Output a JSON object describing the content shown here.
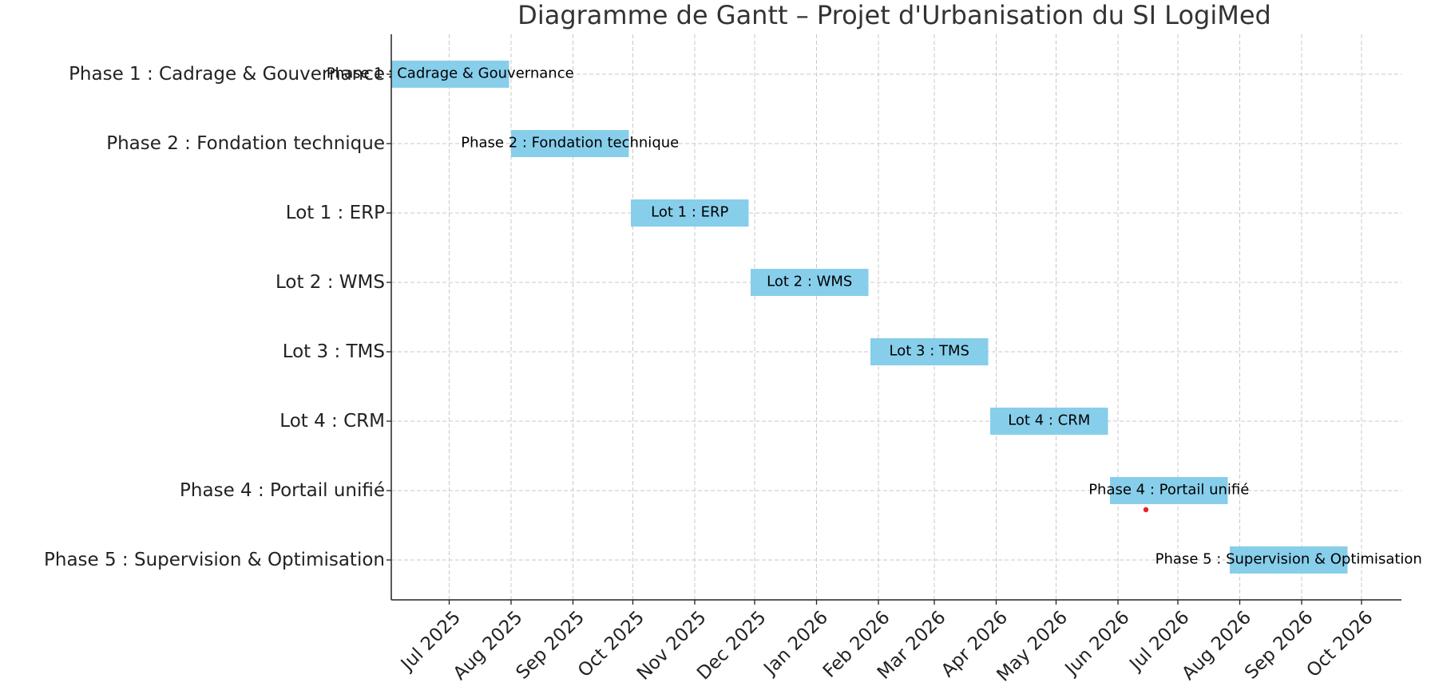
{
  "chart_data": {
    "type": "gantt",
    "title": "Diagramme de Gantt – Projet d'Urbanisation du SI LogiMed",
    "xlabel": "",
    "ylabel": "",
    "grid": true,
    "xlim": [
      "2025-06-02",
      "2026-10-21"
    ],
    "x_ticks": [
      {
        "date": "2025-07-01",
        "label": "Jul 2025"
      },
      {
        "date": "2025-08-01",
        "label": "Aug 2025"
      },
      {
        "date": "2025-09-01",
        "label": "Sep 2025"
      },
      {
        "date": "2025-10-01",
        "label": "Oct 2025"
      },
      {
        "date": "2025-11-01",
        "label": "Nov 2025"
      },
      {
        "date": "2025-12-01",
        "label": "Dec 2025"
      },
      {
        "date": "2026-01-01",
        "label": "Jan 2026"
      },
      {
        "date": "2026-02-01",
        "label": "Feb 2026"
      },
      {
        "date": "2026-03-01",
        "label": "Mar 2026"
      },
      {
        "date": "2026-04-01",
        "label": "Apr 2026"
      },
      {
        "date": "2026-05-01",
        "label": "May 2026"
      },
      {
        "date": "2026-06-01",
        "label": "Jun 2026"
      },
      {
        "date": "2026-07-01",
        "label": "Jul 2026"
      },
      {
        "date": "2026-08-01",
        "label": "Aug 2026"
      },
      {
        "date": "2026-09-01",
        "label": "Sep 2026"
      },
      {
        "date": "2026-10-01",
        "label": "Oct 2026"
      }
    ],
    "tasks": [
      {
        "name": "Phase 1 : Cadrage & Gouvernance",
        "start": "2025-06-02",
        "end": "2025-07-31"
      },
      {
        "name": "Phase 2 : Fondation technique",
        "start": "2025-08-01",
        "end": "2025-09-29"
      },
      {
        "name": "Lot 1 : ERP",
        "start": "2025-09-30",
        "end": "2025-11-28"
      },
      {
        "name": "Lot 2 : WMS",
        "start": "2025-11-29",
        "end": "2026-01-27"
      },
      {
        "name": "Lot 3 : TMS",
        "start": "2026-01-28",
        "end": "2026-03-28"
      },
      {
        "name": "Lot 4 : CRM",
        "start": "2026-03-29",
        "end": "2026-05-27"
      },
      {
        "name": "Phase 4 : Portail unifié",
        "start": "2026-05-28",
        "end": "2026-07-26"
      },
      {
        "name": "Phase 5 : Supervision & Optimisation",
        "start": "2026-07-27",
        "end": "2026-09-24"
      }
    ],
    "markers": [
      {
        "task_index": 6,
        "date": "2026-06-15",
        "color": "#e8222a"
      }
    ],
    "colors": {
      "bar": "#87ceeb",
      "grid": "#c8c8c8",
      "axis": "#222222",
      "marker": "#e8222a"
    }
  }
}
